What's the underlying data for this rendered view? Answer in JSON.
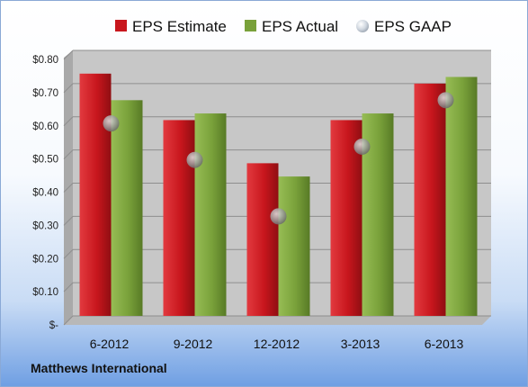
{
  "colors": {
    "estimate": "#c8161d",
    "actual": "#79a13a",
    "gaap": "#9a9a9a",
    "plot_bg": "#c7c7c7"
  },
  "footer": {
    "company": "Matthews International"
  },
  "chart_data": {
    "type": "bar",
    "categories": [
      "6-2012",
      "9-2012",
      "12-2012",
      "3-2013",
      "6-2013"
    ],
    "series": [
      {
        "name": "EPS Estimate",
        "type": "bar",
        "values": [
          0.73,
          0.59,
          0.46,
          0.59,
          0.7
        ]
      },
      {
        "name": "EPS Actual",
        "type": "bar",
        "values": [
          0.65,
          0.61,
          0.42,
          0.61,
          0.72
        ]
      },
      {
        "name": "EPS GAAP",
        "type": "scatter",
        "values": [
          0.58,
          0.47,
          0.3,
          0.51,
          0.65
        ]
      }
    ],
    "y_ticks": [
      {
        "value": 0,
        "label": "$-"
      },
      {
        "value": 0.1,
        "label": "$0.10"
      },
      {
        "value": 0.2,
        "label": "$0.20"
      },
      {
        "value": 0.3,
        "label": "$0.30"
      },
      {
        "value": 0.4,
        "label": "$0.40"
      },
      {
        "value": 0.5,
        "label": "$0.50"
      },
      {
        "value": 0.6,
        "label": "$0.60"
      },
      {
        "value": 0.7,
        "label": "$0.70"
      },
      {
        "value": 0.8,
        "label": "$0.80"
      }
    ],
    "ylim": [
      0,
      0.8
    ],
    "grid": true,
    "legend_position": "top"
  }
}
